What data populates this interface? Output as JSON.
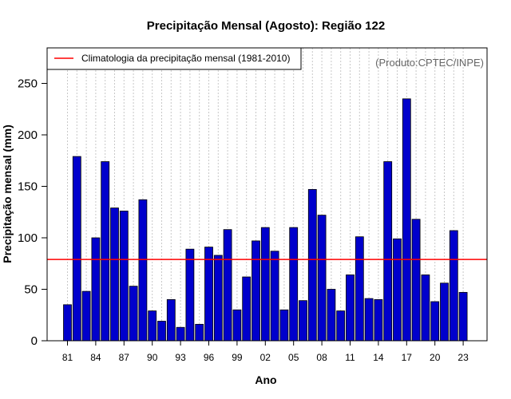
{
  "chart_data": {
    "type": "bar",
    "title": "Precipitação Mensal (Agosto): Região 122",
    "xlabel": "Ano",
    "ylabel": "Precipitação mensal (mm)",
    "credit": "(Produto:CPTEC/INPE)",
    "ylim": [
      0,
      280
    ],
    "yticks": [
      0,
      50,
      100,
      150,
      200,
      250
    ],
    "categories": [
      "81",
      "82",
      "83",
      "84",
      "85",
      "86",
      "87",
      "88",
      "89",
      "90",
      "91",
      "92",
      "93",
      "94",
      "95",
      "96",
      "97",
      "98",
      "99",
      "00",
      "01",
      "02",
      "03",
      "04",
      "05",
      "06",
      "07",
      "08",
      "09",
      "10",
      "11",
      "12",
      "13",
      "14",
      "15",
      "16",
      "17",
      "18",
      "19",
      "20",
      "21",
      "22",
      "23"
    ],
    "xtick_labels": [
      "81",
      "84",
      "87",
      "90",
      "93",
      "96",
      "99",
      "02",
      "05",
      "08",
      "11",
      "14",
      "17",
      "20",
      "23"
    ],
    "values": [
      35,
      179,
      48,
      100,
      174,
      129,
      126,
      53,
      137,
      29,
      19,
      40,
      13,
      89,
      16,
      91,
      83,
      108,
      30,
      62,
      97,
      110,
      87,
      30,
      110,
      39,
      147,
      122,
      50,
      29,
      64,
      101,
      41,
      40,
      174,
      99,
      235,
      118,
      64,
      38,
      56,
      107,
      47
    ],
    "bar_color": "#0000cc",
    "climatology": {
      "label": "Climatologia da precipitação mensal (1981-2010)",
      "value": 79,
      "color": "#ff0000"
    },
    "legend_position": "top-left",
    "grid": "vertical dotted"
  }
}
